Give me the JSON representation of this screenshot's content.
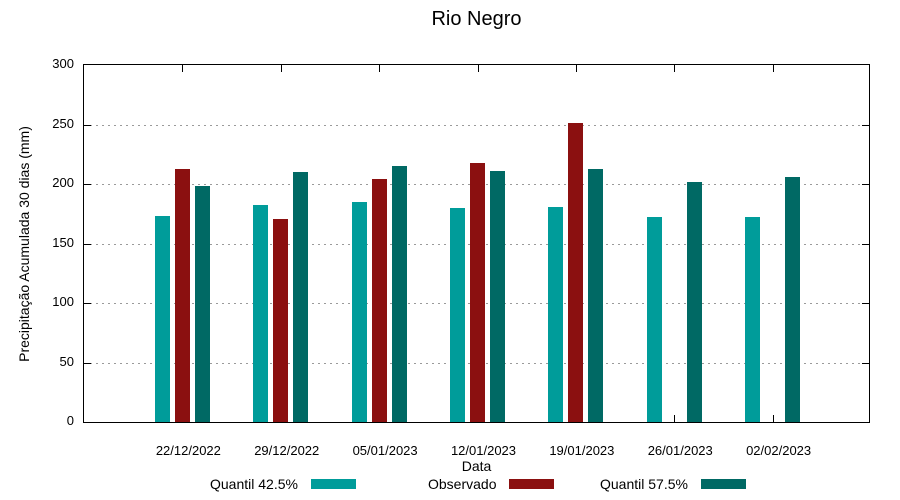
{
  "title": "Rio Negro",
  "chart_data": {
    "type": "bar",
    "title": "Rio Negro",
    "xlabel": "Data",
    "ylabel": "Precipitação Acumulada 30 dias (mm)",
    "ylim": [
      0,
      300
    ],
    "yticks": [
      0,
      50,
      100,
      150,
      200,
      250,
      300
    ],
    "grid": "horizontal dotted gridlines at 50,100,150,200,250",
    "legend_position": "bottom",
    "background": "#ffffff",
    "categories": [
      "22/12/2022",
      "29/12/2022",
      "05/01/2023",
      "12/01/2023",
      "19/01/2023",
      "26/01/2023",
      "02/02/2023"
    ],
    "series": [
      {
        "name": "Quantil 42.5%",
        "color": "#009C9A",
        "values": [
          173,
          182,
          185,
          180,
          181,
          172,
          172
        ]
      },
      {
        "name": "Observado",
        "color": "#8B1010",
        "values": [
          213,
          171,
          204,
          218,
          251,
          null,
          null
        ]
      },
      {
        "name": "Quantil 57.5%",
        "color": "#006964",
        "values": [
          198,
          210,
          215,
          211,
          213,
          202,
          206
        ]
      }
    ]
  }
}
